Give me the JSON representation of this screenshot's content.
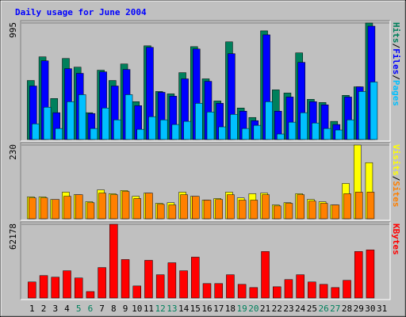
{
  "chart_data": [
    {
      "type": "bar",
      "title": "Daily usage for June 2004",
      "ylim": [
        0,
        995
      ],
      "yticks": [
        995
      ],
      "legend_separator": "/",
      "series": [
        {
          "name": "Hits",
          "color": "#00805c",
          "values": [
            504,
            706,
            350,
            692,
            618,
            229,
            592,
            504,
            645,
            323,
            800,
            410,
            390,
            571,
            793,
            518,
            329,
            834,
            269,
            188,
            928,
            424,
            397,
            740,
            343,
            316,
            155,
            377,
            450,
            995,
            null
          ]
        },
        {
          "name": "Files",
          "color": "#0000ff",
          "values": [
            457,
            672,
            229,
            605,
            565,
            222,
            578,
            457,
            598,
            289,
            787,
            403,
            370,
            518,
            773,
            497,
            309,
            733,
            242,
            161,
            894,
            242,
            363,
            659,
            323,
            296,
            128,
            363,
            450,
            968,
            null
          ]
        },
        {
          "name": "Pages",
          "color": "#00c0ff",
          "values": [
            134,
            276,
            94,
            323,
            383,
            94,
            269,
            168,
            383,
            87,
            195,
            168,
            128,
            155,
            309,
            235,
            108,
            215,
            94,
            121,
            323,
            47,
            148,
            229,
            141,
            94,
            81,
            168,
            410,
            491,
            null
          ]
        }
      ]
    },
    {
      "type": "bar",
      "ylim": [
        0,
        230
      ],
      "yticks": [
        230
      ],
      "legend_separator": "/",
      "series": [
        {
          "name": "Visits",
          "color": "#ffff00",
          "values": [
            68,
            68,
            60,
            83,
            75,
            53,
            90,
            78,
            88,
            70,
            80,
            48,
            50,
            83,
            70,
            58,
            63,
            83,
            65,
            78,
            80,
            43,
            50,
            78,
            60,
            53,
            43,
            110,
            230,
            175,
            null
          ]
        },
        {
          "name": "Sites",
          "color": "#ff8000",
          "values": [
            65,
            65,
            60,
            70,
            75,
            50,
            80,
            75,
            85,
            63,
            80,
            45,
            43,
            75,
            70,
            58,
            60,
            75,
            58,
            58,
            75,
            40,
            48,
            75,
            55,
            48,
            43,
            78,
            83,
            83,
            null
          ]
        }
      ]
    },
    {
      "type": "bar",
      "ylim": [
        0,
        62178
      ],
      "yticks": [
        62178
      ],
      "categories": [
        "1",
        "2",
        "3",
        "4",
        "5",
        "6",
        "7",
        "8",
        "9",
        "10",
        "11",
        "12",
        "13",
        "14",
        "15",
        "16",
        "17",
        "18",
        "19",
        "20",
        "21",
        "22",
        "23",
        "24",
        "25",
        "26",
        "27",
        "28",
        "29",
        "30",
        "31"
      ],
      "category_colors": [
        "#000000",
        "#000000",
        "#000000",
        "#000000",
        "#00805c",
        "#00805c",
        "#000000",
        "#000000",
        "#000000",
        "#000000",
        "#000000",
        "#00805c",
        "#00805c",
        "#000000",
        "#000000",
        "#000000",
        "#000000",
        "#000000",
        "#00805c",
        "#00805c",
        "#000000",
        "#000000",
        "#000000",
        "#000000",
        "#000000",
        "#00805c",
        "#00805c",
        "#000000",
        "#000000",
        "#000000",
        "#000000"
      ],
      "series": [
        {
          "name": "KBytes",
          "color": "#ff0000",
          "values": [
            13517,
            18923,
            17572,
            22979,
            16896,
            5407,
            25682,
            62178,
            32441,
            10138,
            31765,
            19600,
            29738,
            22979,
            34468,
            12165,
            12165,
            19600,
            11489,
            8786,
            39198,
            9462,
            15544,
            19600,
            13517,
            11489,
            8786,
            14869,
            39198,
            40550,
            null
          ]
        }
      ]
    }
  ]
}
